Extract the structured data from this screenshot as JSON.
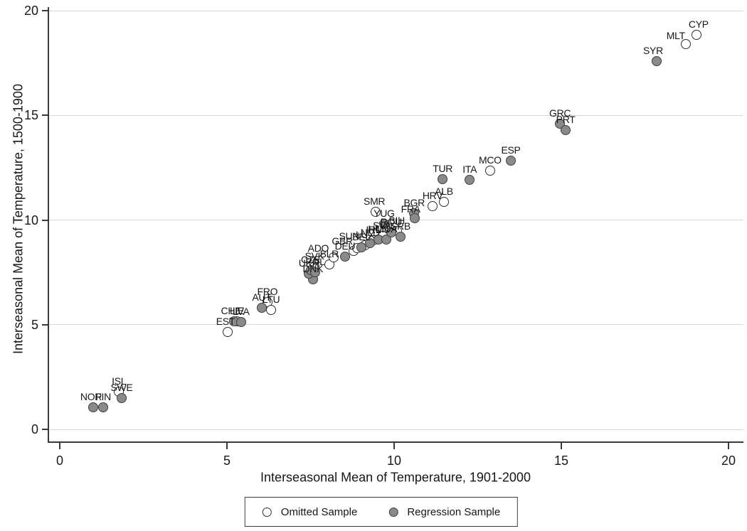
{
  "chart_data": {
    "type": "scatter",
    "title": "",
    "xlabel": "Interseasonal Mean of Temperature, 1901-2000",
    "ylabel": "Interseasonal Mean of Temperature, 1500-1900",
    "xlim": [
      -0.35,
      20.45
    ],
    "ylim": [
      -0.6,
      20.2
    ],
    "xticks": [
      0,
      5,
      10,
      15,
      20
    ],
    "yticks": [
      0,
      5,
      10,
      15,
      20
    ],
    "grid": "horizontal-only",
    "legend": {
      "position": "bottom-center",
      "entries": [
        {
          "label": "Omitted Sample",
          "marker": "hollow-circle"
        },
        {
          "label": "Regression Sample",
          "marker": "filled-gray-circle"
        }
      ]
    },
    "series": [
      {
        "name": "Omitted Sample",
        "marker": "hollow",
        "points": [
          {
            "label": "ISL",
            "x": 1.77,
            "y": 1.8
          },
          {
            "label": "EST",
            "x": 5.02,
            "y": 4.65,
            "dx": -3
          },
          {
            "label": "LIE",
            "x": 5.3,
            "y": 5.15
          },
          {
            "label": "FRO",
            "x": 6.21,
            "y": 6.08
          },
          {
            "label": "LTU",
            "x": 6.32,
            "y": 5.7
          },
          {
            "label": "SVK",
            "x": 7.62,
            "y": 7.78
          },
          {
            "label": "BLR",
            "x": 8.06,
            "y": 7.88
          },
          {
            "label": "ADO",
            "x": 8.2,
            "y": 8.22,
            "dx": -22,
            "dy": 2
          },
          {
            "label": "GBR",
            "x": 8.79,
            "y": 8.53,
            "dx": -16,
            "dy": 1
          },
          {
            "label": "SUN",
            "x": 8.89,
            "y": 8.65,
            "dx": -11,
            "dy": -2
          },
          {
            "label": "LUX",
            "x": 9.13,
            "y": 8.8
          },
          {
            "label": "IRL",
            "x": 9.38,
            "y": 9.03
          },
          {
            "label": "SVN",
            "x": 9.66,
            "y": 9.25
          },
          {
            "label": "SMR",
            "x": 9.45,
            "y": 10.4,
            "dx": -2
          },
          {
            "label": "BIH",
            "x": 10.08,
            "y": 9.47
          },
          {
            "label": "HRV",
            "x": 11.15,
            "y": 10.66
          },
          {
            "label": "ALB",
            "x": 11.49,
            "y": 10.88
          },
          {
            "label": "MCO",
            "x": 12.87,
            "y": 12.36
          },
          {
            "label": "MLT",
            "x": 18.72,
            "y": 18.4,
            "dx": -14,
            "dy": 3
          },
          {
            "label": "CYP",
            "x": 19.04,
            "y": 18.85,
            "dx": 3
          }
        ]
      },
      {
        "name": "Regression Sample",
        "marker": "filled",
        "points": [
          {
            "label": "NOR",
            "x": 1.0,
            "y": 1.05,
            "dx": -3
          },
          {
            "label": "FIN",
            "x": 1.3,
            "y": 1.05
          },
          {
            "label": "SWE",
            "x": 1.85,
            "y": 1.5
          },
          {
            "label": "CHE",
            "x": 5.21,
            "y": 5.16,
            "dx": -4
          },
          {
            "label": "LVA",
            "x": 5.42,
            "y": 5.12
          },
          {
            "label": "AUT",
            "x": 6.04,
            "y": 5.81
          },
          {
            "label": "DNK",
            "x": 7.57,
            "y": 7.15
          },
          {
            "label": "UKR",
            "x": 7.45,
            "y": 7.45
          },
          {
            "label": "CZE",
            "x": 7.5,
            "y": 7.62
          },
          {
            "label": "POL",
            "x": 7.64,
            "y": 7.5
          },
          {
            "label": "DEU",
            "x": 8.53,
            "y": 8.25
          },
          {
            "label": "BEL",
            "x": 9.02,
            "y": 8.7
          },
          {
            "label": "NLD",
            "x": 9.28,
            "y": 8.88
          },
          {
            "label": "HUN",
            "x": 9.53,
            "y": 9.07
          },
          {
            "label": "MDA",
            "x": 9.77,
            "y": 9.08
          },
          {
            "label": "YUG",
            "x": 9.7,
            "y": 9.8
          },
          {
            "label": "ROU",
            "x": 9.91,
            "y": 9.42
          },
          {
            "label": "SRB",
            "x": 10.19,
            "y": 9.2
          },
          {
            "label": "BGR",
            "x": 10.6,
            "y": 10.33
          },
          {
            "label": "FRA",
            "x": 10.62,
            "y": 10.08,
            "dx": -6,
            "dy": 2
          },
          {
            "label": "TUR",
            "x": 11.45,
            "y": 11.95
          },
          {
            "label": "ITA",
            "x": 12.26,
            "y": 11.92
          },
          {
            "label": "ESP",
            "x": 13.49,
            "y": 12.83
          },
          {
            "label": "GRC",
            "x": 14.96,
            "y": 14.6
          },
          {
            "label": "PRT",
            "x": 15.13,
            "y": 14.3
          },
          {
            "label": "SYR",
            "x": 17.85,
            "y": 17.59,
            "dx": -5
          }
        ]
      }
    ]
  },
  "colors": {
    "filled_marker_fill": "#8a8a8a",
    "filled_marker_stroke": "#3f3f3f",
    "hollow_marker_stroke": "#2d2d2d",
    "gridline": "#d9d9d9",
    "axis": "#3a3a3a",
    "text": "#161616",
    "background": "#ffffff"
  }
}
